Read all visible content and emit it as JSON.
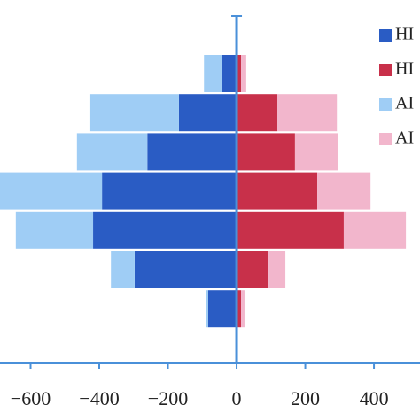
{
  "chart_data": {
    "type": "diverging-bar",
    "categories": [
      null,
      null,
      null,
      null,
      null,
      null,
      null
    ],
    "series": [
      {
        "name": "HI",
        "color": "#2a5cc4",
        "values": [
          -44,
          -168,
          -260,
          -392,
          -418,
          -297,
          -83
        ]
      },
      {
        "name": "HI",
        "color": "#c8304a",
        "values": [
          13,
          119,
          170,
          235,
          312,
          93,
          13
        ]
      },
      {
        "name": "AI",
        "color": "#9fcdf5",
        "values": [
          -51,
          -258,
          -205,
          -308,
          -225,
          -69,
          -7
        ]
      },
      {
        "name": "AI",
        "color": "#f2b6cc",
        "values": [
          15,
          173,
          124,
          155,
          181,
          49,
          10
        ]
      }
    ],
    "xlim": [
      -689,
      534
    ],
    "xticks": [
      {
        "value": -600,
        "label": "−600"
      },
      {
        "value": -400,
        "label": "−400"
      },
      {
        "value": -200,
        "label": "−200"
      },
      0,
      200,
      400
    ]
  }
}
